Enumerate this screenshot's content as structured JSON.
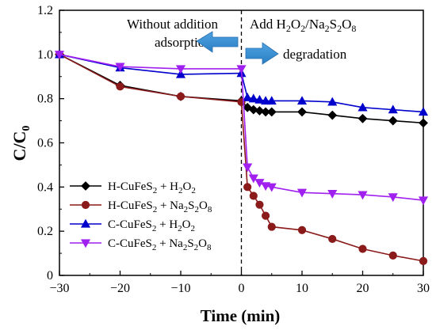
{
  "chart_data": {
    "type": "line",
    "xlabel": "Time (min)",
    "ylabel": "C/C0",
    "xlim": [
      -30,
      30
    ],
    "ylim": [
      0,
      1.2
    ],
    "xticks": [
      -30,
      -20,
      -10,
      0,
      10,
      20,
      30
    ],
    "yticks": [
      "0",
      "0.2",
      "0.4",
      "0.6",
      "0.8",
      "1.0",
      "1.2"
    ],
    "annotations": {
      "left_line1": "Without addition",
      "left_line2": "adsorption",
      "right_line1": "Add H2O2/Na2S2O8",
      "right_line2": "degradation"
    },
    "legend_position": "bottom-left",
    "series": [
      {
        "name": "H-CuFeS2 + H2O2",
        "color": "#000000",
        "marker": "diamond",
        "x": [
          -30,
          -20,
          -10,
          0,
          1,
          2,
          3,
          4,
          5,
          10,
          15,
          20,
          25,
          30
        ],
        "y": [
          1.0,
          0.86,
          0.81,
          0.79,
          0.76,
          0.75,
          0.745,
          0.74,
          0.74,
          0.74,
          0.725,
          0.71,
          0.7,
          0.69
        ]
      },
      {
        "name": "H-CuFeS2 + Na2S2O8",
        "color": "#8B1A1A",
        "marker": "circle",
        "x": [
          -30,
          -20,
          -10,
          0,
          1,
          2,
          3,
          4,
          5,
          10,
          15,
          20,
          25,
          30
        ],
        "y": [
          1.0,
          0.855,
          0.81,
          0.785,
          0.4,
          0.36,
          0.32,
          0.27,
          0.22,
          0.205,
          0.165,
          0.12,
          0.09,
          0.065
        ]
      },
      {
        "name": "C-CuFeS2 + H2O2",
        "color": "#0000CC",
        "marker": "triangle-up",
        "x": [
          -30,
          -20,
          -10,
          0,
          1,
          2,
          3,
          4,
          5,
          10,
          15,
          20,
          25,
          30
        ],
        "y": [
          1.0,
          0.94,
          0.91,
          0.915,
          0.805,
          0.8,
          0.795,
          0.79,
          0.79,
          0.79,
          0.785,
          0.76,
          0.75,
          0.74
        ]
      },
      {
        "name": "C-CuFeS2 + Na2S2O8",
        "color": "#A020F0",
        "marker": "triangle-down",
        "x": [
          -30,
          -20,
          -10,
          0,
          1,
          2,
          3,
          4,
          5,
          10,
          15,
          20,
          25,
          30
        ],
        "y": [
          1.0,
          0.945,
          0.935,
          0.935,
          0.49,
          0.44,
          0.42,
          0.405,
          0.4,
          0.375,
          0.37,
          0.365,
          0.355,
          0.34
        ]
      }
    ]
  }
}
